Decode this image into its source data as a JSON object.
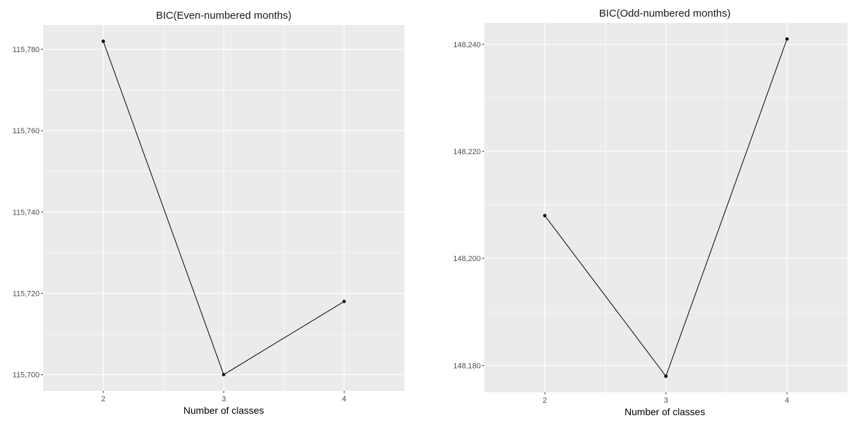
{
  "chart_data": [
    {
      "type": "line",
      "title": "BIC(Even-numbered months)",
      "xlabel": "Number of classes",
      "ylabel": "",
      "x": [
        2,
        3,
        4
      ],
      "x_tick_labels": [
        "2",
        "3",
        "4"
      ],
      "values": [
        115782,
        115700,
        115718
      ],
      "y_ticks": [
        115700,
        115720,
        115740,
        115760,
        115780
      ],
      "y_tick_labels": [
        "115,700",
        "115,720",
        "115,740",
        "115,760",
        "115,780"
      ],
      "xlim": [
        1.5,
        4.5
      ],
      "ylim": [
        115696,
        115786
      ],
      "grid": true,
      "panel_color": "#ebebeb",
      "grid_color": "#ffffff",
      "line_color": "#000000"
    },
    {
      "type": "line",
      "title": "BIC(Odd-numbered months)",
      "xlabel": "Number of classes",
      "ylabel": "",
      "x": [
        2,
        3,
        4
      ],
      "x_tick_labels": [
        "2",
        "3",
        "4"
      ],
      "values": [
        148208,
        148178,
        148241
      ],
      "y_ticks": [
        148180,
        148200,
        148220,
        148240
      ],
      "y_tick_labels": [
        "148,180",
        "148,200",
        "148,220",
        "148,240"
      ],
      "xlim": [
        1.5,
        4.5
      ],
      "ylim": [
        148175,
        148244
      ],
      "grid": true,
      "panel_color": "#ebebeb",
      "grid_color": "#ffffff",
      "line_color": "#000000"
    }
  ]
}
